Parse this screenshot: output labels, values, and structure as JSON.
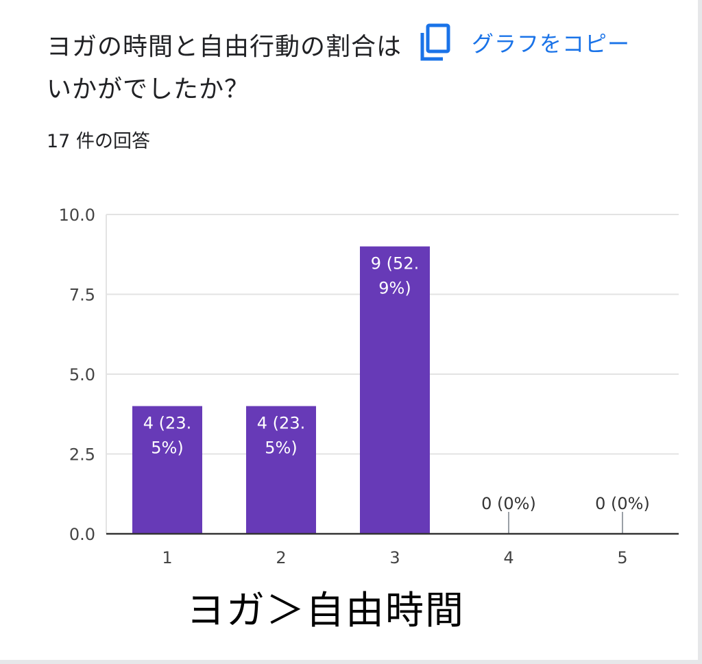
{
  "card": {
    "question": "ヨガの時間と自由行動の割合はいかがでしたか？",
    "response_count": "17 件の回答",
    "copy_button_label": "グラフをコピー"
  },
  "caption": "ヨガ＞自由時間",
  "colors": {
    "bar": "#673ab7",
    "link": "#1a73e8",
    "text": "#202124",
    "grid": "#e3e3e3",
    "axis": "#333333"
  },
  "icons": {
    "copy": "copy-icon"
  },
  "chart_data": {
    "type": "bar",
    "categories": [
      "1",
      "2",
      "3",
      "4",
      "5"
    ],
    "values": [
      4,
      4,
      9,
      0,
      0
    ],
    "data_labels": [
      "4 (23.5%)",
      "4 (23.5%)",
      "9 (52.9%)",
      "0 (0%)",
      "0 (0%)"
    ],
    "yticks": [
      "0.0",
      "2.5",
      "5.0",
      "7.5",
      "10.0"
    ],
    "ylim": [
      0,
      10
    ],
    "grid": true,
    "legend": "none"
  }
}
